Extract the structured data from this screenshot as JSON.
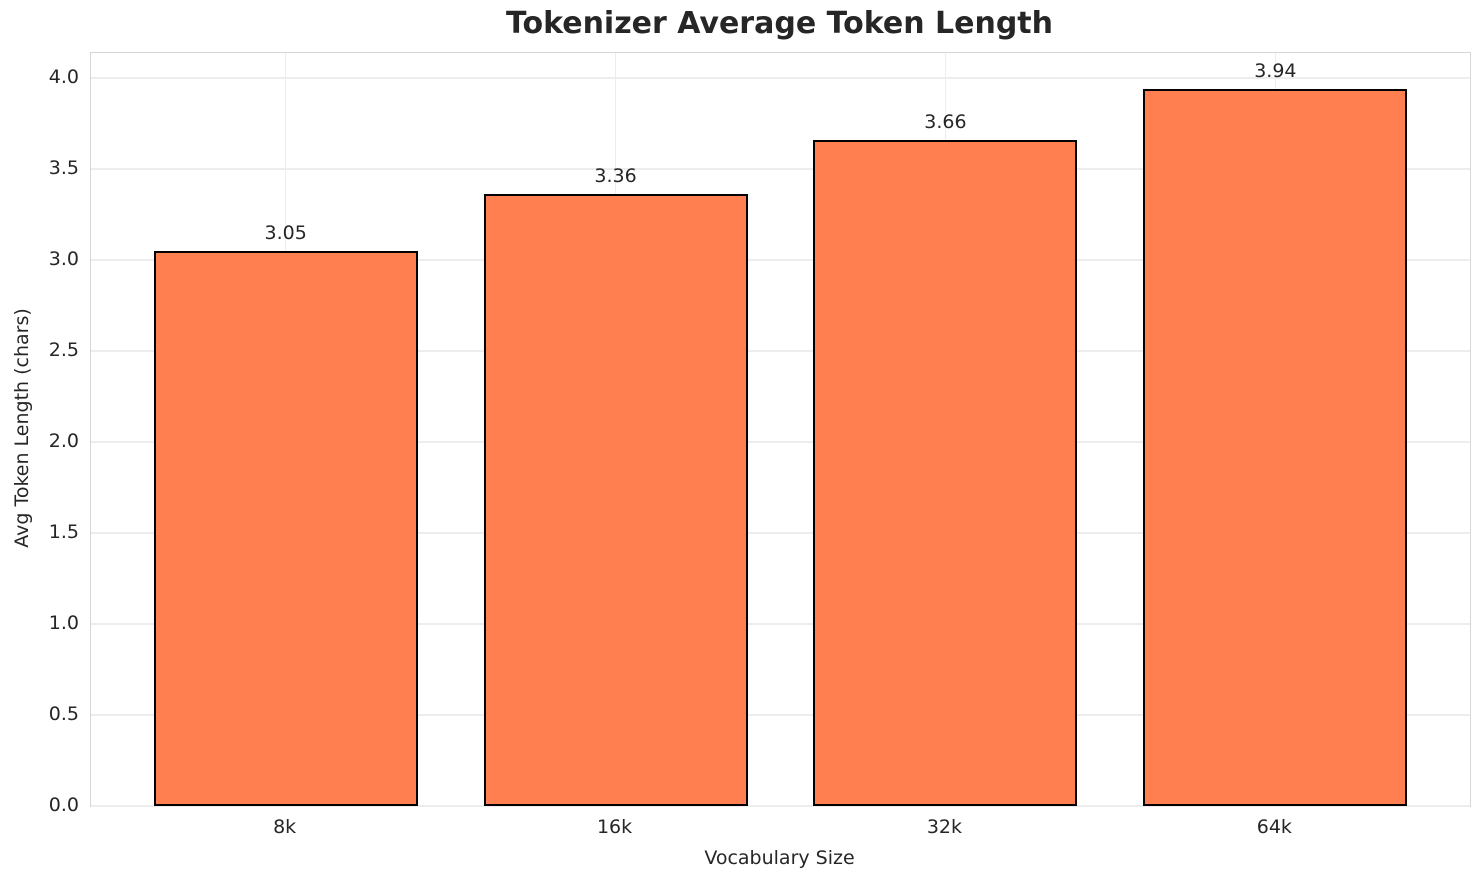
{
  "chart_data": {
    "type": "bar",
    "title": "Tokenizer Average Token Length",
    "xlabel": "Vocabulary Size",
    "ylabel": "Avg Token Length (chars)",
    "categories": [
      "8k",
      "16k",
      "32k",
      "64k"
    ],
    "values": [
      3.05,
      3.36,
      3.66,
      3.94
    ],
    "bar_value_labels": [
      "3.05",
      "3.36",
      "3.66",
      "3.94"
    ],
    "ytick_values": [
      0.0,
      0.5,
      1.0,
      1.5,
      2.0,
      2.5,
      3.0,
      3.5,
      4.0
    ],
    "ytick_labels": [
      "0.0",
      "0.5",
      "1.0",
      "1.5",
      "2.0",
      "2.5",
      "3.0",
      "3.5",
      "4.0"
    ],
    "ylim": [
      0,
      4.137
    ],
    "xlim": [
      -0.59,
      3.59
    ],
    "bar_width_units": 0.8,
    "grid": "both",
    "legend": "none",
    "colors": {
      "bar_fill": "#ff7f50",
      "bar_edge": "#000000",
      "grid": "#ededed",
      "spine": "#d6d6d6",
      "text": "#262626",
      "background": "#ffffff"
    }
  }
}
